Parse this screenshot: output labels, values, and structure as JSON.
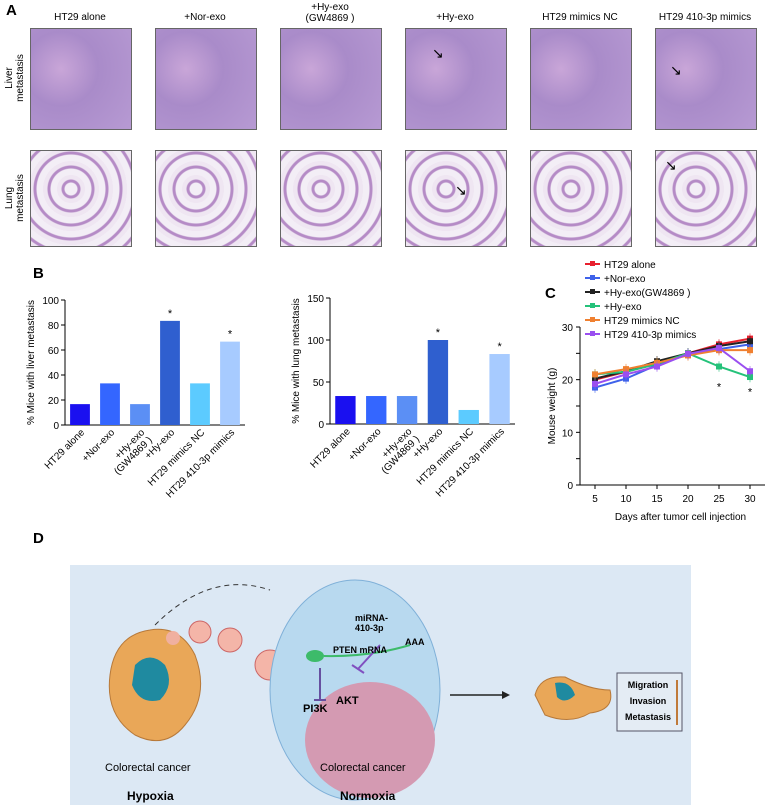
{
  "panel_a": {
    "label": "A",
    "columns": [
      "HT29 alone",
      "+Nor-exo",
      "+Hy-exo\n(GW4869 )",
      "+Hy-exo",
      "HT29 mimics NC",
      "HT29 410-3p mimics"
    ],
    "rows": [
      "Liver\nmetastasis",
      "Lung\nmetastasis"
    ]
  },
  "panel_b": {
    "label": "B"
  },
  "panel_c": {
    "label": "C"
  },
  "panel_d": {
    "label": "D",
    "left_caption": "Colorectal cancer",
    "left_condition": "Hypoxia",
    "center_caption": "Colorectal cancer",
    "center_condition": "Normoxia",
    "mirna": "miRNA-\n410-3p",
    "aaa": "AAA",
    "pten": "PTEN mRNA",
    "pi3k": "PI3K",
    "akt": "AKT",
    "outcomes": [
      "Migration",
      "Invasion",
      "Metastasis"
    ]
  },
  "chart_data": [
    {
      "type": "bar",
      "categories": [
        "HT29 alone",
        "+Nor-exo",
        "+Hy-exo\n(GW4869 )",
        "+Hy-exo",
        "HT29 mimics NC",
        "HT29 410-3p mimics"
      ],
      "values": [
        16.7,
        33.3,
        16.7,
        83.3,
        33.3,
        66.7
      ],
      "significance": [
        "",
        "",
        "",
        "*",
        "",
        "*"
      ],
      "colors": [
        "#1a10f0",
        "#3466ff",
        "#5b8ff5",
        "#2f5fcf",
        "#5ccbff",
        "#a7cbff"
      ],
      "ylabel": "% Mice with liver metastasis",
      "ylim": [
        0,
        100
      ],
      "yticks": [
        0,
        20,
        40,
        60,
        80,
        100
      ]
    },
    {
      "type": "bar",
      "categories": [
        "HT29 alone",
        "+Nor-exo",
        "+Hy-exo\n(GW4869 )",
        "+Hy-exo",
        "HT29 mimics NC",
        "HT29 410-3p mimics"
      ],
      "values": [
        33.3,
        33.3,
        33.3,
        100,
        16.7,
        83.3
      ],
      "significance": [
        "",
        "",
        "",
        "*",
        "",
        "*"
      ],
      "colors": [
        "#1a10f0",
        "#3466ff",
        "#5b8ff5",
        "#2f5fcf",
        "#5ccbff",
        "#a7cbff"
      ],
      "ylabel": "% Mice with lung metastasis",
      "ylim": [
        0,
        150
      ],
      "yticks": [
        0,
        50,
        100,
        150
      ]
    },
    {
      "type": "line",
      "x": [
        5,
        10,
        15,
        20,
        25,
        30
      ],
      "xlabel": "Days after tumor cell injection",
      "ylabel": "Mouse weight (g)",
      "ylim": [
        0,
        30
      ],
      "yticks": [
        0,
        10,
        20,
        30
      ],
      "legend": "top",
      "significance_x": [
        25,
        30
      ],
      "series": [
        {
          "name": "HT29 alone",
          "color": "#e8202e",
          "values": [
            20,
            21.5,
            23,
            25,
            26.7,
            27.8
          ]
        },
        {
          "name": "+Nor-exo",
          "color": "#3f62ea",
          "values": [
            18.5,
            20.2,
            22.8,
            24.8,
            25.8,
            26.7
          ]
        },
        {
          "name": "+Hy-exo(GW4869 )",
          "color": "#222222",
          "values": [
            20.2,
            21.6,
            23.5,
            25,
            26.4,
            27.3
          ]
        },
        {
          "name": "+Hy-exo",
          "color": "#25c27a",
          "values": [
            21,
            21.5,
            23,
            25,
            22.5,
            20.5
          ]
        },
        {
          "name": "HT29 mimics NC",
          "color": "#f08030",
          "values": [
            21,
            22,
            23.2,
            24.6,
            25.6,
            25.6
          ]
        },
        {
          "name": "HT29 410-3p mimics",
          "color": "#9a4ff0",
          "values": [
            19.2,
            21,
            22.5,
            24.9,
            26,
            21.6
          ]
        }
      ]
    }
  ]
}
